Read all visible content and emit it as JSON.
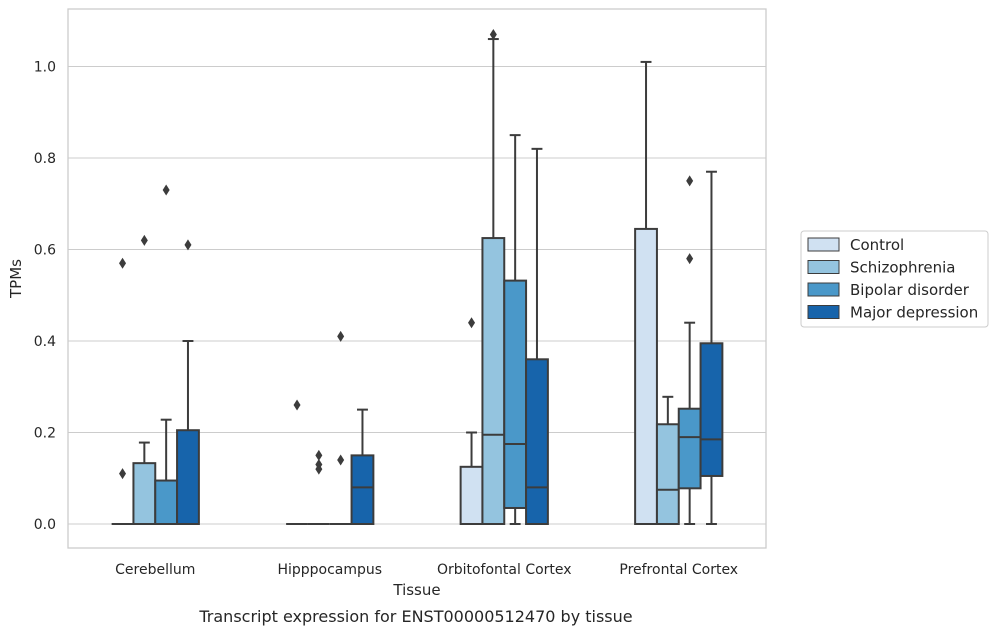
{
  "chart_data": {
    "type": "box",
    "caption": "Transcript expression for ENST00000512470 by tissue",
    "xlabel": "Tissue",
    "ylabel": "TPMs",
    "ylim": [
      -0.052,
      1.13
    ],
    "yticks": [
      0.0,
      0.2,
      0.4,
      0.6,
      0.8,
      1.0
    ],
    "ytick_labels": [
      "0.0",
      "0.2",
      "0.4",
      "0.6",
      "0.8",
      "1.0"
    ],
    "grid": "horizontal",
    "legend_position": "right",
    "categories": [
      "Cerebellum",
      "Hipppocampus",
      "Orbitofontal Cortex",
      "Prefrontal Cortex"
    ],
    "series": [
      {
        "name": "Control",
        "color": "#d0e1f2",
        "boxes": [
          {
            "q1": 0.0,
            "median": 0.0,
            "q3": 0.0,
            "whislo": 0.0,
            "whishi": 0.0,
            "fliers": [
              0.57,
              0.11
            ]
          },
          {
            "q1": 0.0,
            "median": 0.0,
            "q3": 0.0,
            "whislo": 0.0,
            "whishi": 0.0,
            "fliers": [
              0.26
            ]
          },
          {
            "q1": 0.0,
            "median": 0.0,
            "q3": 0.125,
            "whislo": 0.0,
            "whishi": 0.2,
            "fliers": [
              0.44
            ]
          },
          {
            "q1": 0.0,
            "median": 0.0,
            "q3": 0.645,
            "whislo": 0.0,
            "whishi": 1.01,
            "fliers": []
          }
        ]
      },
      {
        "name": "Schizophrenia",
        "color": "#94c4df",
        "boxes": [
          {
            "q1": 0.0,
            "median": 0.0,
            "q3": 0.133,
            "whislo": 0.0,
            "whishi": 0.178,
            "fliers": [
              0.62
            ]
          },
          {
            "q1": 0.0,
            "median": 0.0,
            "q3": 0.0,
            "whislo": 0.0,
            "whishi": 0.0,
            "fliers": [
              0.15,
              0.13,
              0.12
            ]
          },
          {
            "q1": 0.0,
            "median": 0.195,
            "q3": 0.625,
            "whislo": 0.0,
            "whishi": 1.06,
            "fliers": [
              1.07
            ]
          },
          {
            "q1": 0.0,
            "median": 0.075,
            "q3": 0.218,
            "whislo": 0.0,
            "whishi": 0.278,
            "fliers": []
          }
        ]
      },
      {
        "name": "Bipolar disorder",
        "color": "#4a98c9",
        "boxes": [
          {
            "q1": 0.0,
            "median": 0.0,
            "q3": 0.095,
            "whislo": 0.0,
            "whishi": 0.228,
            "fliers": [
              0.73
            ]
          },
          {
            "q1": 0.0,
            "median": 0.0,
            "q3": 0.0,
            "whislo": 0.0,
            "whishi": 0.0,
            "fliers": [
              0.41,
              0.14
            ]
          },
          {
            "q1": 0.035,
            "median": 0.175,
            "q3": 0.532,
            "whislo": 0.0,
            "whishi": 0.85,
            "fliers": []
          },
          {
            "q1": 0.078,
            "median": 0.19,
            "q3": 0.252,
            "whislo": 0.0,
            "whishi": 0.44,
            "fliers": [
              0.75,
              0.58
            ]
          }
        ]
      },
      {
        "name": "Major depression",
        "color": "#1764ab",
        "boxes": [
          {
            "q1": 0.0,
            "median": 0.0,
            "q3": 0.205,
            "whislo": 0.0,
            "whishi": 0.4,
            "fliers": [
              0.61
            ]
          },
          {
            "q1": 0.0,
            "median": 0.08,
            "q3": 0.15,
            "whislo": 0.0,
            "whishi": 0.25,
            "fliers": []
          },
          {
            "q1": 0.0,
            "median": 0.08,
            "q3": 0.36,
            "whislo": 0.0,
            "whishi": 0.82,
            "fliers": []
          },
          {
            "q1": 0.105,
            "median": 0.185,
            "q3": 0.395,
            "whislo": 0.0,
            "whishi": 0.77,
            "fliers": []
          }
        ]
      }
    ]
  }
}
